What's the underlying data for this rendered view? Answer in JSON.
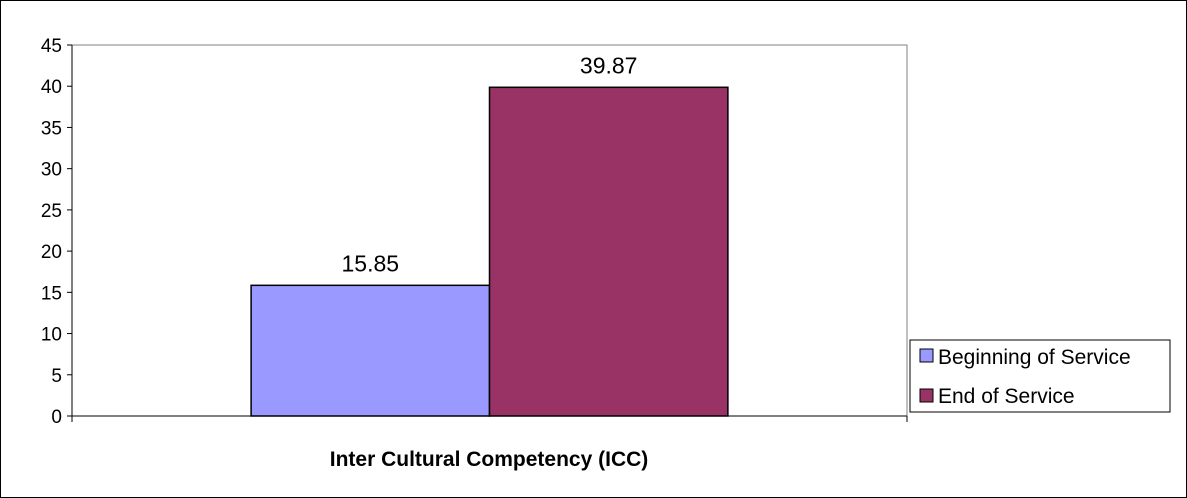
{
  "chart_data": {
    "type": "bar",
    "categories": [
      "Inter Cultural Competency (ICC)"
    ],
    "series": [
      {
        "name": "Beginning of Service",
        "values": [
          15.85
        ],
        "color": "#9999ff"
      },
      {
        "name": "End of Service",
        "values": [
          39.87
        ],
        "color": "#993366"
      }
    ],
    "data_labels": [
      "15.85",
      "39.87"
    ],
    "ylim": [
      0,
      45
    ],
    "yticks": [
      0,
      5,
      10,
      15,
      20,
      25,
      30,
      35,
      40,
      45
    ],
    "title": "",
    "xlabel": "",
    "ylabel": "",
    "grid": false,
    "legend_position": "right",
    "plot_background": "#ffffff",
    "plot_border": "#808080"
  }
}
